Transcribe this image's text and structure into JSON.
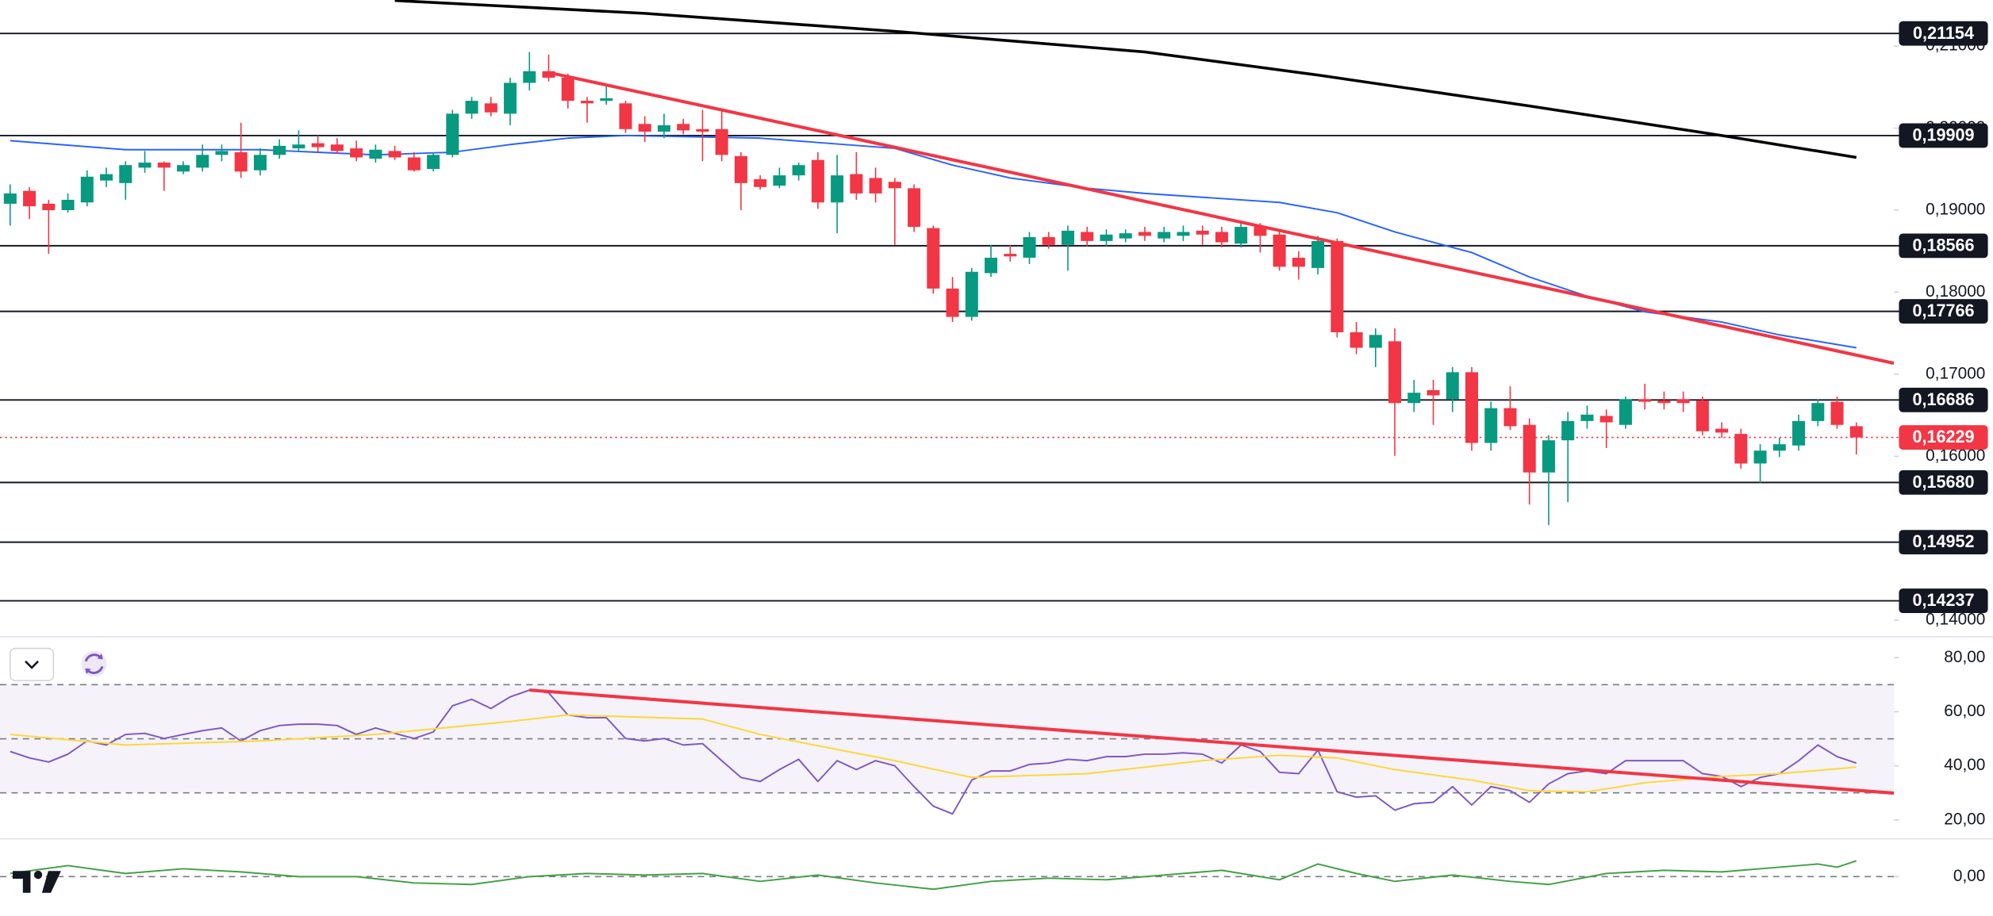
{
  "chart_data": [
    {
      "type": "candlestick",
      "up_color": "#089981",
      "down_color": "#f23645",
      "xlim": [
        -0.53,
        97.95
      ],
      "ylim": [
        0.13798,
        0.21562
      ],
      "yticks": [
        {
          "value": 0.21,
          "label": "0,21000"
        },
        {
          "value": 0.2,
          "label": "0,20000"
        },
        {
          "value": 0.19,
          "label": "0,19000"
        },
        {
          "value": 0.18,
          "label": "0,18000"
        },
        {
          "value": 0.17,
          "label": "0,17000"
        },
        {
          "value": 0.16,
          "label": "0,16000"
        },
        {
          "value": 0.14,
          "label": "0,14000"
        }
      ],
      "open": [
        0.19078,
        0.19235,
        0.19078,
        0.19,
        0.19094,
        0.19361,
        0.1933,
        0.19518,
        0.1958,
        0.19471,
        0.19518,
        0.19674,
        0.19706,
        0.19486,
        0.19674,
        0.19753,
        0.19816,
        0.198,
        0.19753,
        0.19627,
        0.19721,
        0.19643,
        0.19502,
        0.19674,
        0.20176,
        0.20302,
        0.20176,
        0.20552,
        0.20694,
        0.20615,
        0.20333,
        0.20333,
        0.20302,
        0.20051,
        0.19957,
        0.20051,
        0.19988,
        0.19988,
        0.19659,
        0.19377,
        0.19298,
        0.19424,
        0.19612,
        0.19094,
        0.19439,
        0.19392,
        0.19345,
        0.19267,
        0.18781,
        0.18044,
        0.17699,
        0.18232,
        0.18467,
        0.1842,
        0.18671,
        0.18577,
        0.18734,
        0.18624,
        0.18655,
        0.18734,
        0.18655,
        0.18687,
        0.18749,
        0.18734,
        0.18592,
        0.18796,
        0.18702,
        0.1842,
        0.18295,
        0.18624,
        0.17511,
        0.17322,
        0.17401,
        0.16648,
        0.16805,
        0.16695,
        0.17024,
        0.16162,
        0.16586,
        0.16382,
        0.15802,
        0.16194,
        0.16429,
        0.16491,
        0.16382,
        0.16695,
        0.1668,
        0.16695,
        0.1668,
        0.16335,
        0.16272,
        0.15911,
        0.16068,
        0.16131,
        0.16429,
        0.16664,
        0.16366
      ],
      "high": [
        0.19314,
        0.19282,
        0.19126,
        0.19204,
        0.19486,
        0.19518,
        0.19596,
        0.19721,
        0.19596,
        0.19596,
        0.198,
        0.198,
        0.20066,
        0.19753,
        0.19863,
        0.19972,
        0.1991,
        0.19878,
        0.19847,
        0.198,
        0.19784,
        0.19706,
        0.19706,
        0.20223,
        0.2038,
        0.2038,
        0.20615,
        0.20929,
        0.20897,
        0.20662,
        0.2038,
        0.20521,
        0.20333,
        0.20145,
        0.20176,
        0.20113,
        0.20223,
        0.20223,
        0.19706,
        0.19424,
        0.19518,
        0.1958,
        0.19706,
        0.19674,
        0.19706,
        0.19518,
        0.19392,
        0.19314,
        0.18812,
        0.18185,
        0.18295,
        0.18577,
        0.18577,
        0.18734,
        0.18734,
        0.18812,
        0.18796,
        0.18765,
        0.18765,
        0.18796,
        0.18796,
        0.18812,
        0.18812,
        0.18796,
        0.18859,
        0.18843,
        0.18765,
        0.18498,
        0.18687,
        0.18655,
        0.17636,
        0.17558,
        0.17558,
        0.1693,
        0.1693,
        0.17087,
        0.17087,
        0.16664,
        0.16852,
        0.1646,
        0.16256,
        0.16539,
        0.16617,
        0.1657,
        0.16727,
        0.16883,
        0.16789,
        0.16789,
        0.16727,
        0.16413,
        0.16335,
        0.16146,
        0.16225,
        0.16507,
        0.16695,
        0.16727,
        0.16413
      ],
      "low": [
        0.18812,
        0.1889,
        0.18467,
        0.18969,
        0.19047,
        0.19282,
        0.19126,
        0.19455,
        0.19235,
        0.19439,
        0.19471,
        0.19596,
        0.19392,
        0.19424,
        0.19627,
        0.19706,
        0.19706,
        0.1969,
        0.19596,
        0.1958,
        0.19612,
        0.19471,
        0.19471,
        0.19643,
        0.20113,
        0.20145,
        0.20035,
        0.20458,
        0.20568,
        0.20239,
        0.20066,
        0.20286,
        0.19941,
        0.19831,
        0.19878,
        0.19925,
        0.19596,
        0.19596,
        0.19,
        0.19251,
        0.19267,
        0.19361,
        0.19016,
        0.18718,
        0.19126,
        0.19094,
        0.18577,
        0.18734,
        0.17981,
        0.17636,
        0.17652,
        0.18185,
        0.18373,
        0.18342,
        0.1853,
        0.18263,
        0.18561,
        0.18561,
        0.18608,
        0.18624,
        0.18608,
        0.18624,
        0.18577,
        0.18545,
        0.18545,
        0.18483,
        0.18263,
        0.18154,
        0.18216,
        0.17448,
        0.17244,
        0.17087,
        0.16005,
        0.16539,
        0.16382,
        0.16539,
        0.16068,
        0.16068,
        0.16319,
        0.1541,
        0.15159,
        0.15441,
        0.16335,
        0.161,
        0.16335,
        0.1657,
        0.1657,
        0.16539,
        0.16256,
        0.16225,
        0.15849,
        0.15676,
        0.1599,
        0.16068,
        0.16366,
        0.16335,
        0.16021
      ],
      "close": [
        0.19204,
        0.19047,
        0.19,
        0.19126,
        0.19408,
        0.19439,
        0.19549,
        0.1958,
        0.19518,
        0.19549,
        0.19674,
        0.19721,
        0.19471,
        0.19674,
        0.19784,
        0.198,
        0.19768,
        0.19721,
        0.19643,
        0.19737,
        0.19643,
        0.19486,
        0.19674,
        0.20176,
        0.20333,
        0.20192,
        0.20552,
        0.20694,
        0.20615,
        0.20333,
        0.20302,
        0.20364,
        0.19988,
        0.19957,
        0.20035,
        0.19972,
        0.19957,
        0.19674,
        0.1933,
        0.19282,
        0.19424,
        0.19549,
        0.19094,
        0.19424,
        0.19204,
        0.19204,
        0.19267,
        0.18796,
        0.18044,
        0.17699,
        0.18248,
        0.1842,
        0.18436,
        0.18671,
        0.18577,
        0.18749,
        0.18624,
        0.18702,
        0.18718,
        0.18687,
        0.18734,
        0.18734,
        0.18702,
        0.18608,
        0.18796,
        0.18687,
        0.1831,
        0.1831,
        0.18624,
        0.17511,
        0.17322,
        0.17479,
        0.16648,
        0.16774,
        0.16742,
        0.17024,
        0.16162,
        0.16586,
        0.16366,
        0.15802,
        0.16194,
        0.16429,
        0.16507,
        0.16413,
        0.16695,
        0.16664,
        0.16648,
        0.16648,
        0.16304,
        0.16288,
        0.15911,
        0.16068,
        0.16146,
        0.16429,
        0.16648,
        0.16382,
        0.16229
      ],
      "overlays": [
        {
          "color": "#2962ff",
          "x": [
            0,
            6,
            13,
            19,
            23,
            26,
            29,
            32,
            39,
            46,
            49,
            52,
            56,
            59,
            62,
            66,
            69,
            72,
            76,
            79,
            82,
            85,
            89,
            92,
            96
          ],
          "values": [
            0.19847,
            0.19737,
            0.19737,
            0.19674,
            0.19706,
            0.198,
            0.19878,
            0.1991,
            0.19878,
            0.19753,
            0.19549,
            0.19392,
            0.19267,
            0.19204,
            0.19157,
            0.19094,
            0.18969,
            0.18734,
            0.18483,
            0.18185,
            0.1795,
            0.17761,
            0.17636,
            0.17479,
            0.17322
          ]
        },
        {
          "color": "#000000",
          "x": [
            20,
            33,
            46,
            59,
            68,
            79,
            89,
            96
          ],
          "values": [
            0.21556,
            0.21399,
            0.2118,
            0.20929,
            0.20647,
            0.2027,
            0.1991,
            0.19643
          ]
        }
      ],
      "trendlines": [
        {
          "color": "#f23645",
          "x": [
            28,
            97.95
          ],
          "values": [
            0.20678,
            0.17134
          ]
        }
      ],
      "levels": [
        {
          "value": 0.21154,
          "label": "0,21154"
        },
        {
          "value": 0.19909,
          "label": "0,19909"
        },
        {
          "value": 0.18566,
          "label": "0,18566"
        },
        {
          "value": 0.17766,
          "label": "0,17766"
        },
        {
          "value": 0.16686,
          "label": "0,16686"
        },
        {
          "value": 0.1568,
          "label": "0,15680"
        },
        {
          "value": 0.14952,
          "label": "0,14952"
        },
        {
          "value": 0.14237,
          "label": "0,14237"
        }
      ],
      "last_price": {
        "value": 0.16229,
        "label": "0,16229",
        "color": "#f23645"
      }
    },
    {
      "type": "line",
      "xlim": [
        -0.53,
        97.95
      ],
      "ylim": [
        13.0,
        87.7
      ],
      "yticks": [
        {
          "value": 80,
          "label": "80,00"
        },
        {
          "value": 60,
          "label": "60,00"
        },
        {
          "value": 40,
          "label": "40,00"
        },
        {
          "value": 20,
          "label": "20,00"
        }
      ],
      "band": [
        30,
        70
      ],
      "hlines": [
        70,
        50,
        30
      ],
      "series": [
        {
          "color": "#7e57c2",
          "values": [
            45.3,
            42.9,
            41.4,
            44.3,
            49.2,
            47.7,
            51.6,
            52.0,
            50.1,
            51.6,
            53.0,
            54.0,
            49.2,
            53.0,
            54.9,
            55.4,
            55.4,
            54.9,
            51.6,
            54.0,
            52.0,
            50.1,
            52.5,
            62.2,
            64.6,
            61.2,
            65.5,
            68.0,
            67.0,
            58.8,
            57.8,
            57.8,
            50.1,
            49.2,
            50.1,
            47.7,
            48.2,
            41.9,
            35.7,
            34.2,
            38.6,
            42.4,
            34.2,
            41.9,
            38.6,
            41.9,
            40.0,
            32.3,
            25.1,
            22.2,
            34.7,
            38.1,
            38.1,
            40.5,
            41.0,
            42.4,
            41.9,
            43.4,
            43.4,
            44.3,
            44.3,
            44.8,
            44.3,
            41.0,
            47.7,
            45.3,
            37.6,
            37.1,
            45.8,
            30.4,
            28.4,
            28.9,
            23.6,
            26.0,
            26.5,
            32.3,
            25.5,
            32.3,
            30.8,
            26.5,
            33.3,
            37.1,
            38.1,
            37.1,
            41.9,
            41.9,
            41.9,
            41.9,
            37.1,
            36.1,
            32.3,
            35.7,
            37.1,
            41.9,
            47.7,
            43.4,
            41.0
          ]
        },
        {
          "color": "#fdd835",
          "x": [
            0,
            6,
            13,
            19,
            26,
            29,
            36,
            39,
            46,
            50,
            56,
            62,
            66,
            69,
            72,
            76,
            79,
            82,
            85,
            89,
            92,
            96
          ],
          "values": [
            51.6,
            47.7,
            49.2,
            51.6,
            56.4,
            58.8,
            57.3,
            51.6,
            41.9,
            35.7,
            37.1,
            41.9,
            43.9,
            42.9,
            38.6,
            34.7,
            30.8,
            30.4,
            33.7,
            36.1,
            37.1,
            39.5
          ]
        }
      ],
      "trendlines": [
        {
          "color": "#f23645",
          "x": [
            27,
            97.95
          ],
          "values": [
            68.0,
            29.9
          ]
        }
      ]
    },
    {
      "type": "line",
      "xlim": [
        -0.53,
        97.95
      ],
      "ylim": [
        -1.25,
        1.2
      ],
      "yticks": [
        {
          "value": 0,
          "label": "0,00"
        }
      ],
      "hlines": [
        0
      ],
      "series": [
        {
          "color": "#43a047",
          "x": [
            0,
            3,
            6,
            9,
            12,
            15,
            18,
            21,
            24,
            27,
            30,
            33,
            36,
            39,
            42,
            45,
            48,
            51,
            54,
            57,
            60,
            63,
            66,
            68,
            70,
            72,
            75,
            78,
            80,
            83,
            86,
            89,
            92,
            94,
            95,
            96
          ],
          "values": [
            0.1,
            0.35,
            0.1,
            0.25,
            0.15,
            0.0,
            0.0,
            -0.2,
            -0.25,
            0.0,
            0.1,
            0.05,
            0.1,
            -0.15,
            0.05,
            -0.2,
            -0.4,
            -0.15,
            -0.05,
            -0.1,
            0.05,
            0.2,
            -0.1,
            0.4,
            0.1,
            -0.15,
            0.05,
            -0.15,
            -0.25,
            0.1,
            0.2,
            0.15,
            0.3,
            0.4,
            0.3,
            0.5
          ]
        }
      ]
    }
  ]
}
